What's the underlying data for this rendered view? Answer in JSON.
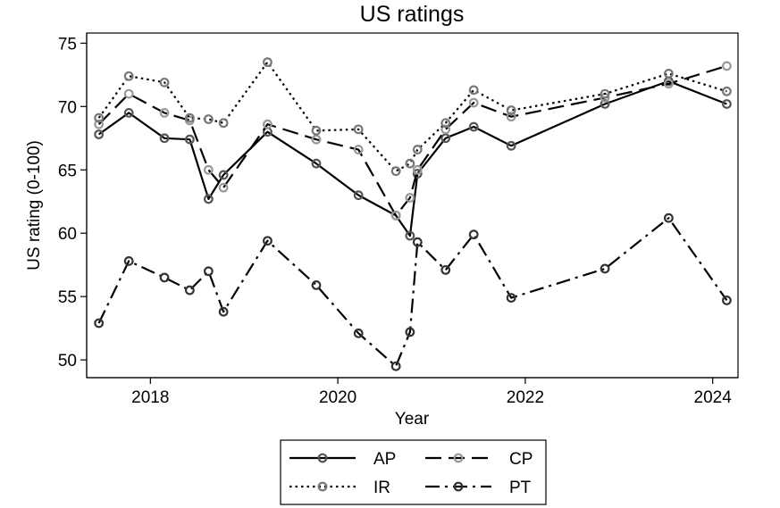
{
  "chart_data": {
    "type": "line",
    "title": "US ratings",
    "xlabel": "Year",
    "ylabel": "US rating (0-100)",
    "xlim": [
      2017.32,
      2024.27
    ],
    "ylim": [
      48.6,
      75.8
    ],
    "xticks": [
      2018,
      2020,
      2022,
      2024
    ],
    "yticks": [
      50,
      55,
      60,
      65,
      70,
      75
    ],
    "grid": false,
    "legend_position": "bottom",
    "series": [
      {
        "name": "AP",
        "dash": "solid",
        "color": "#000000",
        "marker_color": "#555555",
        "points": [
          [
            2017.45,
            67.8
          ],
          [
            2017.77,
            69.5
          ],
          [
            2018.15,
            67.5
          ],
          [
            2018.42,
            67.4
          ],
          [
            2018.62,
            62.7
          ],
          [
            2018.78,
            64.6
          ],
          [
            2019.25,
            68.0
          ],
          [
            2019.77,
            65.5
          ],
          [
            2020.22,
            63.0
          ],
          [
            2020.62,
            61.4
          ],
          [
            2020.77,
            59.8
          ],
          [
            2020.85,
            64.7
          ],
          [
            2021.15,
            67.5
          ],
          [
            2021.45,
            68.4
          ],
          [
            2021.85,
            66.9
          ],
          [
            2022.85,
            70.2
          ],
          [
            2023.53,
            72.0
          ],
          [
            2024.15,
            70.2
          ]
        ]
      },
      {
        "name": "CP",
        "dash": "long",
        "color": "#000000",
        "marker_color": "#999999",
        "points": [
          [
            2017.45,
            68.6
          ],
          [
            2017.77,
            71.0
          ],
          [
            2018.15,
            69.5
          ],
          [
            2018.42,
            68.9
          ],
          [
            2018.62,
            65.0
          ],
          [
            2018.78,
            63.6
          ],
          [
            2019.25,
            68.6
          ],
          [
            2019.77,
            67.4
          ],
          [
            2020.22,
            66.6
          ],
          [
            2020.62,
            61.4
          ],
          [
            2020.77,
            62.8
          ],
          [
            2020.85,
            65.0
          ],
          [
            2021.15,
            68.2
          ],
          [
            2021.45,
            70.3
          ],
          [
            2021.85,
            69.2
          ],
          [
            2022.85,
            70.7
          ],
          [
            2023.53,
            71.8
          ],
          [
            2024.15,
            73.2
          ]
        ]
      },
      {
        "name": "IR",
        "dash": "dot",
        "color": "#000000",
        "marker_color": "#777777",
        "points": [
          [
            2017.45,
            69.1
          ],
          [
            2017.77,
            72.4
          ],
          [
            2018.15,
            71.9
          ],
          [
            2018.42,
            69.1
          ],
          [
            2018.62,
            69.0
          ],
          [
            2018.78,
            68.7
          ],
          [
            2019.25,
            73.5
          ],
          [
            2019.77,
            68.1
          ],
          [
            2020.22,
            68.2
          ],
          [
            2020.62,
            64.9
          ],
          [
            2020.77,
            65.5
          ],
          [
            2020.85,
            66.6
          ],
          [
            2021.15,
            68.7
          ],
          [
            2021.45,
            71.3
          ],
          [
            2021.85,
            69.7
          ],
          [
            2022.85,
            71.0
          ],
          [
            2023.53,
            72.6
          ],
          [
            2024.15,
            71.2
          ]
        ]
      },
      {
        "name": "PT",
        "dash": "dashdot",
        "color": "#000000",
        "marker_color": "#333333",
        "points": [
          [
            2017.45,
            52.9
          ],
          [
            2017.77,
            57.8
          ],
          [
            2018.15,
            56.5
          ],
          [
            2018.42,
            55.5
          ],
          [
            2018.62,
            57.0
          ],
          [
            2018.78,
            53.8
          ],
          [
            2019.25,
            59.4
          ],
          [
            2019.77,
            55.9
          ],
          [
            2020.22,
            52.1
          ],
          [
            2020.62,
            49.5
          ],
          [
            2020.77,
            52.2
          ],
          [
            2020.85,
            59.3
          ],
          [
            2021.15,
            57.1
          ],
          [
            2021.45,
            59.9
          ],
          [
            2021.85,
            54.9
          ],
          [
            2022.85,
            57.2
          ],
          [
            2023.53,
            61.2
          ],
          [
            2024.15,
            54.7
          ]
        ]
      }
    ]
  }
}
